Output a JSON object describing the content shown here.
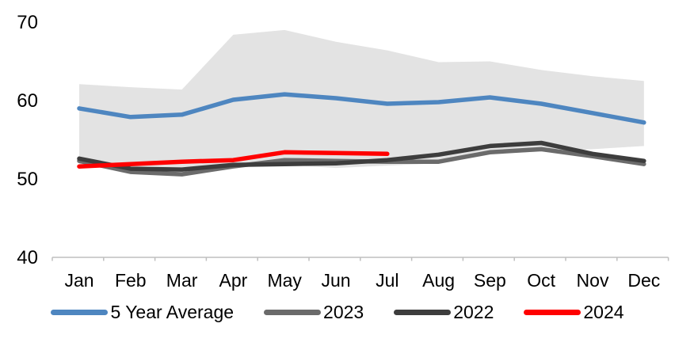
{
  "chart_data": {
    "type": "line",
    "title": "",
    "xlabel": "",
    "ylabel": "",
    "categories": [
      "Jan",
      "Feb",
      "Mar",
      "Apr",
      "May",
      "Jun",
      "Jul",
      "Aug",
      "Sep",
      "Oct",
      "Nov",
      "Dec"
    ],
    "y_ticks": [
      40,
      50,
      60,
      70
    ],
    "ylim": [
      40,
      72
    ],
    "grid": false,
    "legend_position": "bottom",
    "band": {
      "name": "5-year-range-band",
      "color": "#E3E3E3",
      "top": [
        62.1,
        61.7,
        61.4,
        68.4,
        69.0,
        67.5,
        66.4,
        64.9,
        65.0,
        63.9,
        63.1,
        62.5
      ],
      "bottom": [
        51.9,
        50.9,
        50.7,
        51.5,
        51.8,
        51.4,
        51.7,
        52.0,
        53.2,
        53.5,
        53.8,
        54.2
      ]
    },
    "series": [
      {
        "name": "5 Year Average",
        "color": "#4E86C0",
        "values": [
          59.0,
          57.9,
          58.2,
          60.1,
          60.8,
          60.3,
          59.6,
          59.8,
          60.4,
          59.6,
          58.4,
          57.2
        ]
      },
      {
        "name": "2023",
        "color": "#6B6B6B",
        "values": [
          52.3,
          50.9,
          50.6,
          51.6,
          52.4,
          52.3,
          52.2,
          52.2,
          53.4,
          53.8,
          52.9,
          51.9
        ]
      },
      {
        "name": "2022",
        "color": "#3D3D3D",
        "values": [
          52.6,
          51.3,
          51.2,
          51.8,
          51.9,
          52.0,
          52.4,
          53.1,
          54.2,
          54.6,
          53.2,
          52.3
        ]
      },
      {
        "name": "2024",
        "color": "#FF0000",
        "values": [
          51.6,
          51.9,
          52.2,
          52.4,
          53.4,
          53.3,
          53.2,
          null,
          null,
          null,
          null,
          null
        ]
      }
    ],
    "axis_color": "#BFBFBF",
    "label_color": "#000000"
  }
}
